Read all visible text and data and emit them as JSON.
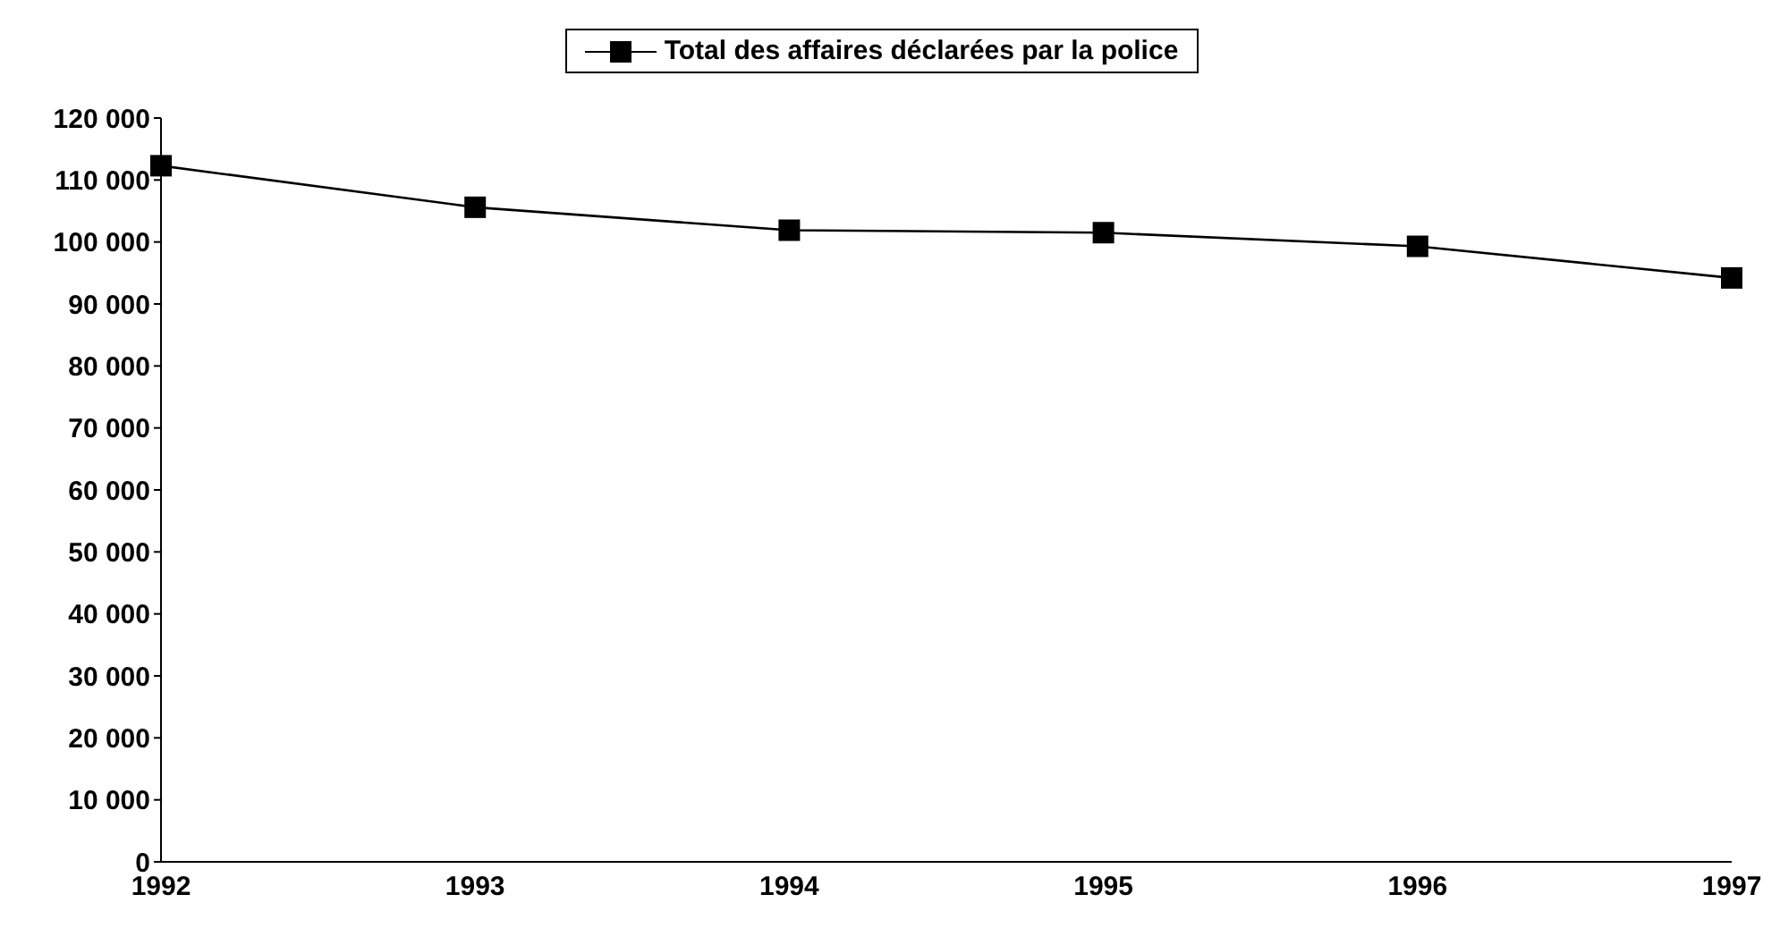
{
  "chart_data": {
    "type": "line",
    "categories": [
      "1992",
      "1993",
      "1994",
      "1995",
      "1996",
      "1997"
    ],
    "series": [
      {
        "name": "Total des affaires déclarées par la police",
        "color": "#000000",
        "values": [
          112300,
          105600,
          101900,
          101500,
          99300,
          94200
        ]
      }
    ],
    "ylim": [
      0,
      120000
    ],
    "yticks": [
      {
        "value": 0,
        "label": "0"
      },
      {
        "value": 10000,
        "label": "10 000"
      },
      {
        "value": 20000,
        "label": "20 000"
      },
      {
        "value": 30000,
        "label": "30 000"
      },
      {
        "value": 40000,
        "label": "40 000"
      },
      {
        "value": 50000,
        "label": "50 000"
      },
      {
        "value": 60000,
        "label": "60 000"
      },
      {
        "value": 70000,
        "label": "70 000"
      },
      {
        "value": 80000,
        "label": "80 000"
      },
      {
        "value": 90000,
        "label": "90 000"
      },
      {
        "value": 100000,
        "label": "100 000"
      },
      {
        "value": 110000,
        "label": "110 000"
      },
      {
        "value": 120000,
        "label": "120 000"
      }
    ],
    "grid": false,
    "legend": "top",
    "marker": "square",
    "line_style": "solid"
  }
}
